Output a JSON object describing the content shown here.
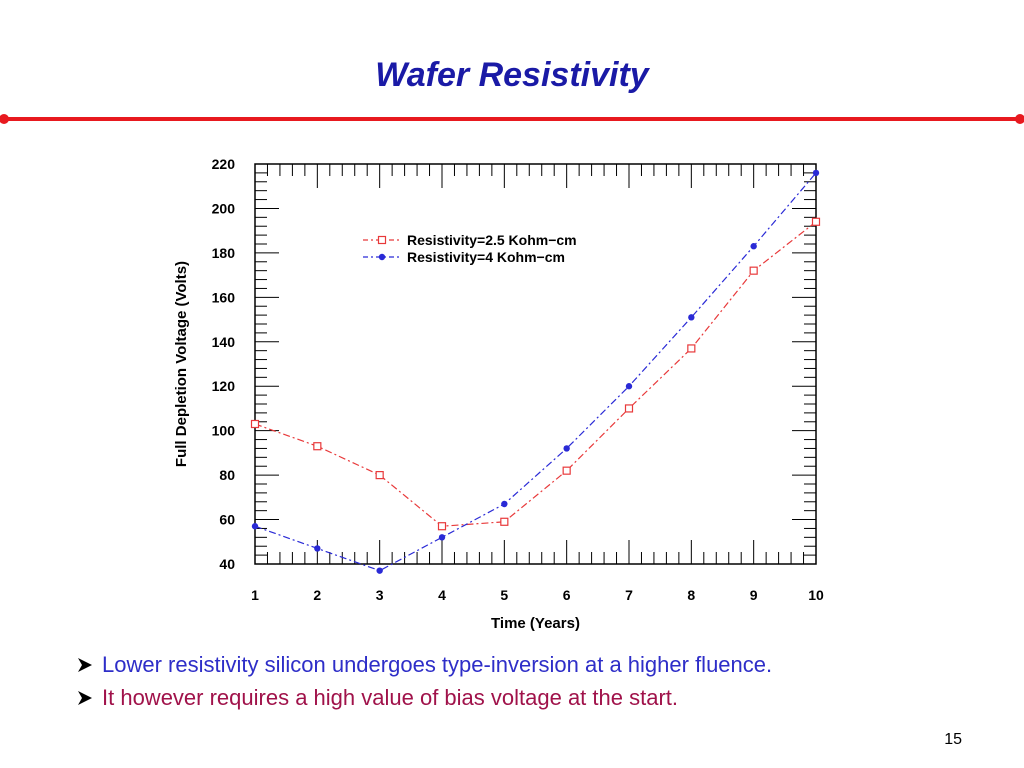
{
  "slide": {
    "title": "Wafer Resistivity",
    "page_number": "15",
    "bullets": [
      "Lower resistivity silicon undergoes type-inversion at a higher fluence.",
      "It however requires a high value of bias voltage at the start."
    ],
    "colors": {
      "title": "#1a1aa6",
      "divider": "#e8191f",
      "bullet_1": "#2e2ec8",
      "bullet_2": "#a0124a"
    }
  },
  "chart_data": {
    "type": "line",
    "xlabel": "Time (Years)",
    "ylabel": "Full Depletion Voltage (Volts)",
    "xlim": [
      1,
      10
    ],
    "ylim": [
      40,
      220
    ],
    "x_ticks": [
      1,
      2,
      3,
      4,
      5,
      6,
      7,
      8,
      9,
      10
    ],
    "y_ticks": [
      40,
      60,
      80,
      100,
      120,
      140,
      160,
      180,
      200,
      220
    ],
    "grid": false,
    "legend_position": "top-left inside plot",
    "x": [
      1,
      2,
      3,
      4,
      5,
      6,
      7,
      8,
      9,
      10
    ],
    "series": [
      {
        "name": "Resistivity=2.5 Kohm−cm",
        "color": "#e8393a",
        "marker": "open-square",
        "values": [
          103,
          93,
          80,
          57,
          59,
          82,
          110,
          137,
          172,
          194
        ]
      },
      {
        "name": "Resistivity=4 Kohm−cm",
        "color": "#2a2ad6",
        "marker": "filled-circle",
        "values": [
          57,
          47,
          37,
          52,
          67,
          92,
          120,
          151,
          183,
          216
        ]
      }
    ]
  }
}
